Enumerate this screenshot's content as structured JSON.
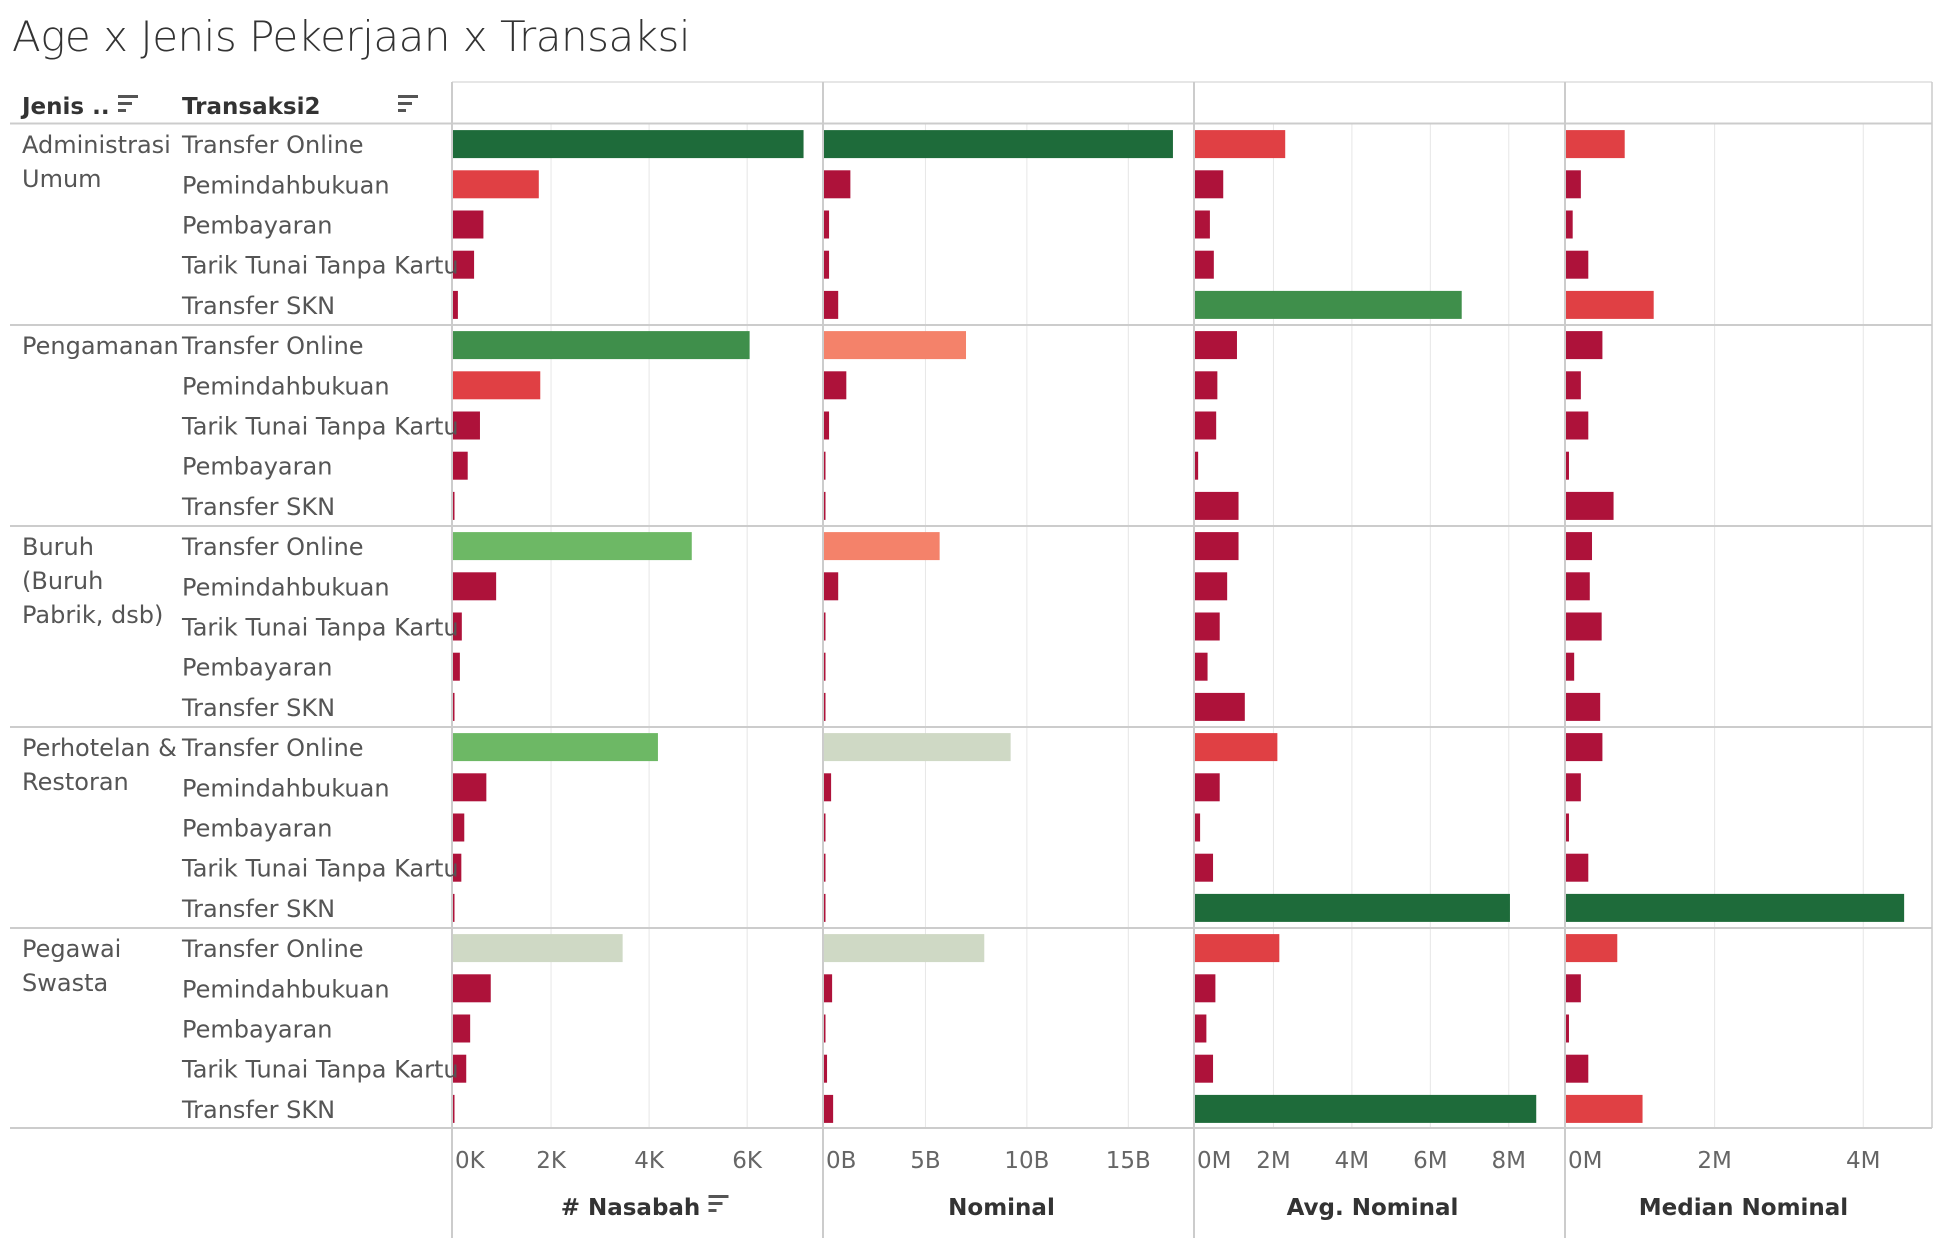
{
  "title": "Age x Jenis Pekerjaan x Transaksi",
  "header": {
    "col1": "Jenis ..",
    "col2": "Transaksi2"
  },
  "colors": {
    "dark_green": "#1e6b3a",
    "mid_green": "#3f8f4b",
    "light_green": "#6db865",
    "pale": "#cfd9c5",
    "salmon": "#f4826a",
    "red": "#e04044",
    "crimson": "#ae123a",
    "gridline": "#e6e6e6",
    "divider": "#cccccc"
  },
  "chart_data": {
    "type": "bar",
    "orientation": "horizontal",
    "groups": [
      {
        "name": "Administrasi Umum",
        "label_lines": [
          "Administrasi",
          "Umum"
        ],
        "rows": [
          "Transfer Online",
          "Pemindahbukuan",
          "Pembayaran",
          "Tarik Tunai Tanpa Kartu",
          "Transfer SKN"
        ]
      },
      {
        "name": "Pengamanan",
        "label_lines": [
          "Pengamanan"
        ],
        "rows": [
          "Transfer Online",
          "Pemindahbukuan",
          "Tarik Tunai Tanpa Kartu",
          "Pembayaran",
          "Transfer SKN"
        ]
      },
      {
        "name": "Buruh (Buruh Pabrik, dsb)",
        "label_lines": [
          "Buruh",
          "(Buruh",
          "Pabrik, dsb)"
        ],
        "rows": [
          "Transfer Online",
          "Pemindahbukuan",
          "Tarik Tunai Tanpa Kartu",
          "Pembayaran",
          "Transfer SKN"
        ]
      },
      {
        "name": "Perhotelan & Restoran",
        "label_lines": [
          "Perhotelan &",
          "Restoran"
        ],
        "rows": [
          "Transfer Online",
          "Pemindahbukuan",
          "Pembayaran",
          "Tarik Tunai Tanpa Kartu",
          "Transfer SKN"
        ]
      },
      {
        "name": "Pegawai Swasta",
        "label_lines": [
          "Pegawai",
          "Swasta"
        ],
        "rows": [
          "Transfer Online",
          "Pemindahbukuan",
          "Pembayaran",
          "Tarik Tunai Tanpa Kartu",
          "Transfer SKN"
        ]
      }
    ],
    "measures": [
      {
        "name": "# Nasabah",
        "sortable": true,
        "max": 7200,
        "ticks": [
          {
            "v": 0,
            "label": "0K"
          },
          {
            "v": 2000,
            "label": "2K"
          },
          {
            "v": 4000,
            "label": "4K"
          },
          {
            "v": 6000,
            "label": "6K"
          }
        ],
        "values": [
          [
            7150,
            1750,
            620,
            430,
            100
          ],
          [
            6050,
            1780,
            550,
            300,
            30
          ],
          [
            4870,
            880,
            180,
            140,
            30
          ],
          [
            4180,
            680,
            230,
            170,
            30
          ],
          [
            3460,
            770,
            350,
            270,
            30
          ]
        ],
        "colors": [
          [
            "dark_green",
            "red",
            "crimson",
            "crimson",
            "crimson"
          ],
          [
            "mid_green",
            "red",
            "crimson",
            "crimson",
            "crimson"
          ],
          [
            "light_green",
            "crimson",
            "crimson",
            "crimson",
            "crimson"
          ],
          [
            "light_green",
            "crimson",
            "crimson",
            "crimson",
            "crimson"
          ],
          [
            "pale",
            "crimson",
            "crimson",
            "crimson",
            "crimson"
          ]
        ]
      },
      {
        "name": "Nominal",
        "sortable": false,
        "max": 17400000000,
        "ticks": [
          {
            "v": 0,
            "label": "0B"
          },
          {
            "v": 5000000000,
            "label": "5B"
          },
          {
            "v": 10000000000,
            "label": "10B"
          },
          {
            "v": 15000000000,
            "label": "15B"
          }
        ],
        "values": [
          [
            17200000000,
            1300000000,
            250000000,
            250000000,
            700000000
          ],
          [
            7000000000,
            1100000000,
            250000000,
            60000000,
            50000000
          ],
          [
            5700000000,
            700000000,
            60000000,
            50000000,
            40000000
          ],
          [
            9200000000,
            350000000,
            60000000,
            60000000,
            50000000
          ],
          [
            7900000000,
            400000000,
            60000000,
            150000000,
            450000000
          ]
        ],
        "colors": [
          [
            "dark_green",
            "crimson",
            "crimson",
            "crimson",
            "crimson"
          ],
          [
            "salmon",
            "crimson",
            "crimson",
            "crimson",
            "crimson"
          ],
          [
            "salmon",
            "crimson",
            "crimson",
            "crimson",
            "crimson"
          ],
          [
            "pale",
            "crimson",
            "crimson",
            "crimson",
            "crimson"
          ],
          [
            "pale",
            "crimson",
            "crimson",
            "crimson",
            "crimson"
          ]
        ]
      },
      {
        "name": "Avg. Nominal",
        "sortable": false,
        "max": 9000000,
        "ticks": [
          {
            "v": 0,
            "label": "0M"
          },
          {
            "v": 2000000,
            "label": "2M"
          },
          {
            "v": 4000000,
            "label": "4M"
          },
          {
            "v": 6000000,
            "label": "6M"
          },
          {
            "v": 8000000,
            "label": "8M"
          }
        ],
        "values": [
          [
            2300000,
            720000,
            380000,
            480000,
            6800000
          ],
          [
            1070000,
            570000,
            540000,
            80000,
            1110000
          ],
          [
            1110000,
            820000,
            630000,
            320000,
            1270000
          ],
          [
            2100000,
            630000,
            130000,
            460000,
            8030000
          ],
          [
            2150000,
            520000,
            290000,
            460000,
            8700000
          ]
        ],
        "colors": [
          [
            "red",
            "crimson",
            "crimson",
            "crimson",
            "mid_green"
          ],
          [
            "crimson",
            "crimson",
            "crimson",
            "crimson",
            "crimson"
          ],
          [
            "crimson",
            "crimson",
            "crimson",
            "crimson",
            "crimson"
          ],
          [
            "red",
            "crimson",
            "crimson",
            "crimson",
            "dark_green"
          ],
          [
            "red",
            "crimson",
            "crimson",
            "crimson",
            "dark_green"
          ]
        ]
      },
      {
        "name": "Median Nominal",
        "sortable": false,
        "max": 4750000,
        "ticks": [
          {
            "v": 0,
            "label": "0M"
          },
          {
            "v": 2000000,
            "label": "2M"
          },
          {
            "v": 4000000,
            "label": "4M"
          }
        ],
        "values": [
          [
            790000,
            200000,
            90000,
            300000,
            1180000
          ],
          [
            490000,
            200000,
            300000,
            40000,
            640000
          ],
          [
            350000,
            320000,
            480000,
            110000,
            460000
          ],
          [
            490000,
            200000,
            40000,
            300000,
            4550000
          ],
          [
            690000,
            200000,
            40000,
            300000,
            1030000
          ]
        ],
        "colors": [
          [
            "red",
            "crimson",
            "crimson",
            "crimson",
            "red"
          ],
          [
            "crimson",
            "crimson",
            "crimson",
            "crimson",
            "crimson"
          ],
          [
            "crimson",
            "crimson",
            "crimson",
            "crimson",
            "crimson"
          ],
          [
            "crimson",
            "crimson",
            "crimson",
            "crimson",
            "dark_green"
          ],
          [
            "red",
            "crimson",
            "crimson",
            "crimson",
            "red"
          ]
        ]
      }
    ]
  }
}
